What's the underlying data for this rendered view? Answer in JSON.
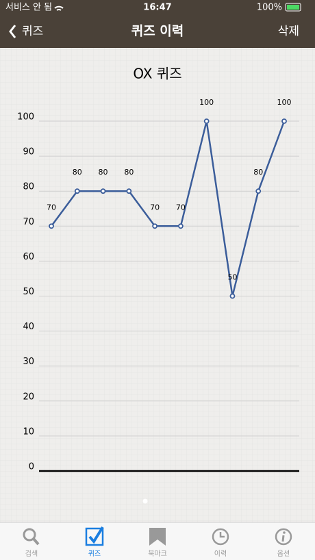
{
  "status_bar": {
    "carrier": "서비스 안 됨",
    "time": "16:47",
    "battery": "100%"
  },
  "nav_bar": {
    "back": "퀴즈",
    "title": "퀴즈 이력",
    "action": "삭제"
  },
  "chart_data": {
    "type": "line",
    "title": "OX 퀴즈",
    "categories": [
      null,
      null,
      null,
      null,
      null,
      null,
      null,
      null,
      null,
      null
    ],
    "values": [
      70,
      80,
      80,
      80,
      70,
      70,
      100,
      50,
      80,
      100
    ],
    "color": "#3b5d9a",
    "ylim": [
      0,
      100
    ],
    "yticks": [
      0,
      10,
      20,
      30,
      40,
      50,
      60,
      70,
      80,
      90,
      100
    ],
    "grid": true,
    "data_labels": true
  },
  "tab_bar": {
    "tabs": [
      "검색",
      "퀴즈",
      "북마크",
      "이력",
      "옵션"
    ],
    "selected": 1
  }
}
